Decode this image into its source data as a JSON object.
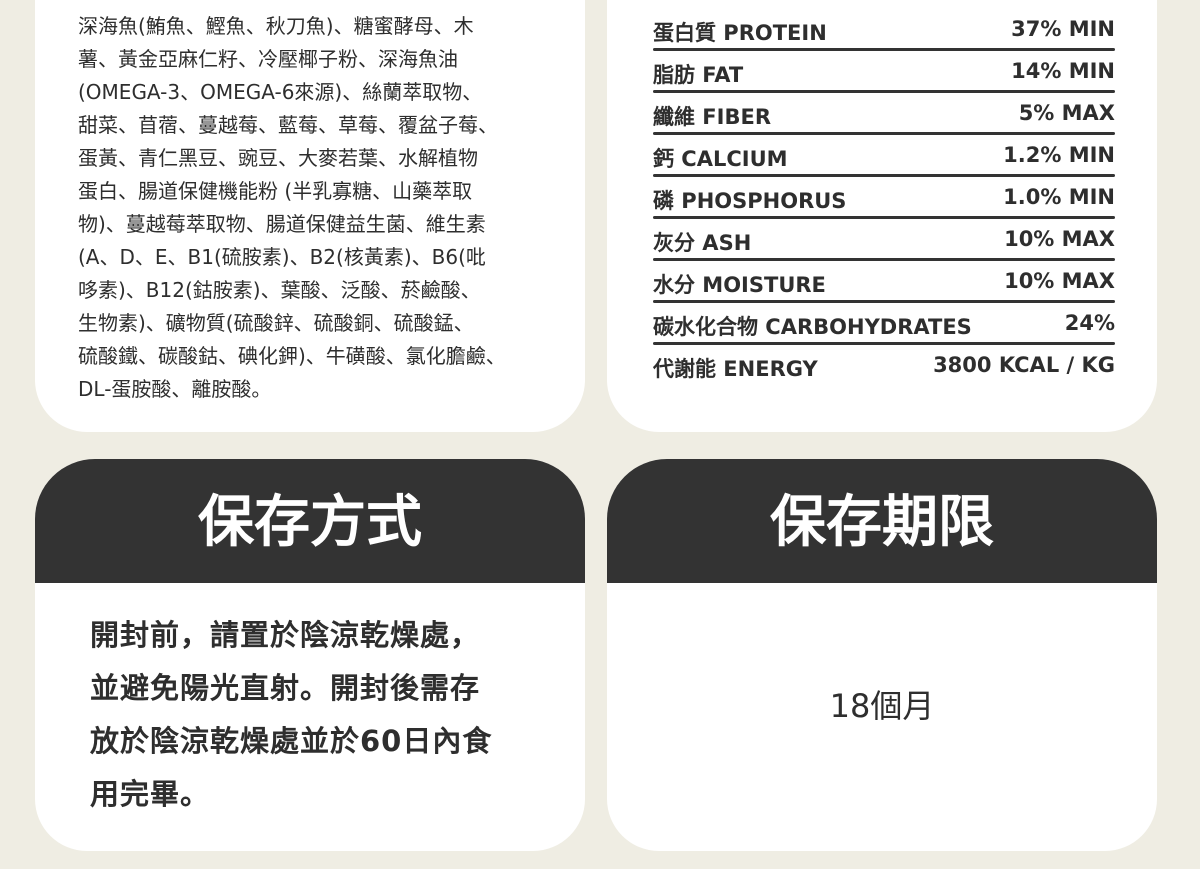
{
  "ingredients": {
    "lines": [
      "深海魚(鮪魚、鰹魚、秋刀魚)、糖蜜酵母、木",
      "薯、黃金亞麻仁籽、冷壓椰子粉、深海魚油",
      "(OMEGA-3、OMEGA-6來源)、絲蘭萃取物、",
      "甜菜、苜蓿、蔓越莓、藍莓、草莓、覆盆子莓、",
      "蛋黃、青仁黑豆、豌豆、大麥若葉、水解植物",
      "蛋白、腸道保健機能粉 (半乳寡糖、山藥萃取",
      "物)、蔓越莓萃取物、腸道保健益生菌、維生素",
      "(A、D、E、B1(硫胺素)、B2(核黃素)、B6(吡",
      "哆素)、B12(鈷胺素)、葉酸、泛酸、菸鹼酸、",
      "生物素)、礦物質(硫酸鋅、硫酸銅、硫酸錳、",
      "硫酸鐵、碳酸鈷、碘化鉀)、牛磺酸、氯化膽鹼、",
      "DL-蛋胺酸、離胺酸。"
    ]
  },
  "nutrition": {
    "rows": [
      {
        "label": "蛋白質 PROTEIN",
        "value": "37% MIN"
      },
      {
        "label": "脂肪 FAT",
        "value": "14% MIN"
      },
      {
        "label": "纖維 FIBER",
        "value": "5% MAX"
      },
      {
        "label": "鈣 CALCIUM",
        "value": "1.2% MIN"
      },
      {
        "label": "磷 PHOSPHORUS",
        "value": "1.0% MIN"
      },
      {
        "label": "灰分 ASH",
        "value": "10% MAX"
      },
      {
        "label": "水分 MOISTURE",
        "value": "10% MAX"
      },
      {
        "label": "碳水化合物 CARBOHYDRATES",
        "value": "24%"
      },
      {
        "label": "代謝能 ENERGY",
        "value": "3800 KCAL / KG"
      }
    ]
  },
  "storage": {
    "title": "保存方式",
    "lines": [
      "開封前，請置於陰涼乾燥處，",
      "並避免陽光直射。開封後需存",
      "放於陰涼乾燥處並於60日內食",
      "用完畢。"
    ]
  },
  "shelf_life": {
    "title": "保存期限",
    "text": "18個月"
  }
}
